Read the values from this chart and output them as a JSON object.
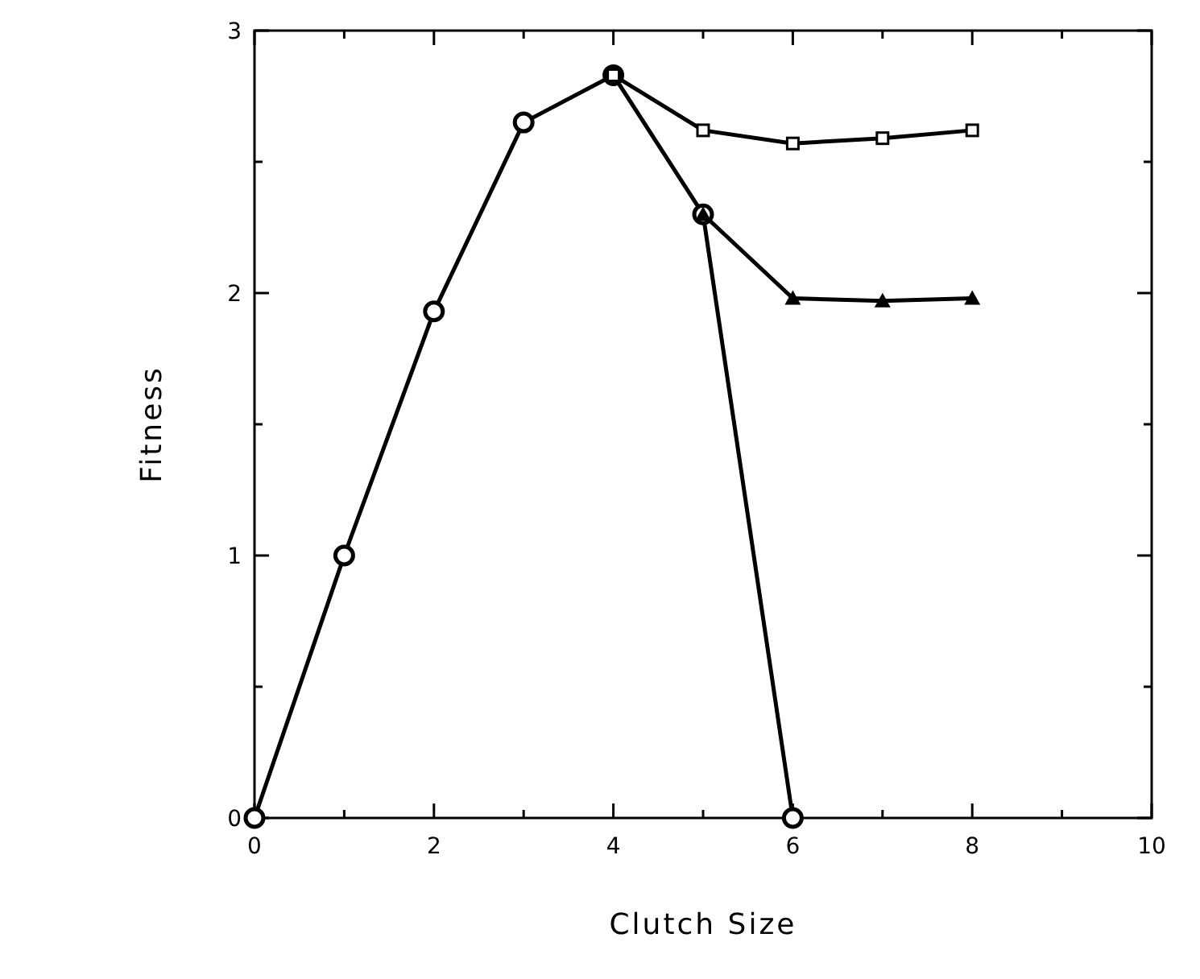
{
  "chart_data": {
    "type": "line",
    "xlabel": "Clutch Size",
    "ylabel": "Fitness",
    "xlim": [
      0,
      10
    ],
    "ylim": [
      0,
      3
    ],
    "xticks": [
      0,
      {
        "value": 1,
        "label": null
      },
      2,
      {
        "value": 3,
        "label": null
      },
      4,
      {
        "value": 5,
        "label": null
      },
      6,
      {
        "value": 7,
        "label": null
      },
      8,
      {
        "value": 9,
        "label": null
      },
      10
    ],
    "yticks": [
      0,
      {
        "value": 0.5,
        "label": null
      },
      1,
      {
        "value": 1.5,
        "label": null
      },
      2,
      {
        "value": 2.5,
        "label": null
      },
      3
    ],
    "grid": false,
    "line_style": "solid",
    "series": [
      {
        "x": [
          0,
          1,
          2,
          3,
          4,
          5,
          6
        ],
        "values": [
          0,
          1,
          1.93,
          2.65,
          2.83,
          2.3,
          0
        ],
        "color": "#000000",
        "marker": "circle"
      },
      {
        "x": [
          4,
          5,
          6,
          7,
          8
        ],
        "values": [
          2.83,
          2.62,
          2.57,
          2.59,
          2.62
        ],
        "color": "#000000",
        "marker": "square"
      },
      {
        "x": [
          5,
          6,
          7,
          8
        ],
        "values": [
          2.3,
          1.98,
          1.97,
          1.98
        ],
        "color": "#000000",
        "marker": "triangle"
      }
    ]
  }
}
